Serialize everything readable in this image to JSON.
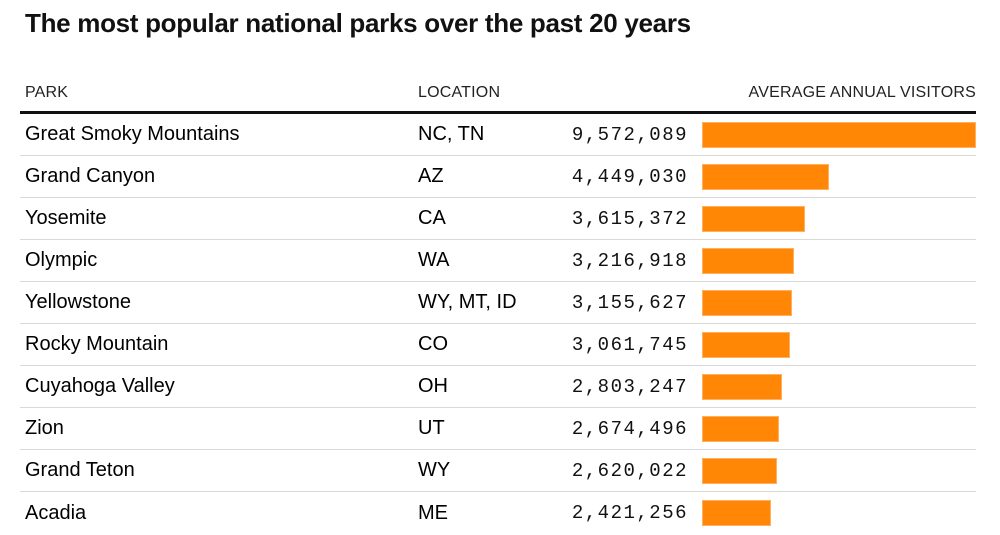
{
  "title": "The most popular national parks over the past 20 years",
  "table": {
    "columns": [
      "PARK",
      "LOCATION",
      "AVERAGE ANNUAL VISITORS"
    ],
    "rows": [
      {
        "park": "Great Smoky Mountains",
        "location": "NC, TN",
        "visitors": "9,572,089",
        "value": 9572089
      },
      {
        "park": "Grand Canyon",
        "location": "AZ",
        "visitors": "4,449,030",
        "value": 4449030
      },
      {
        "park": "Yosemite",
        "location": "CA",
        "visitors": "3,615,372",
        "value": 3615372
      },
      {
        "park": "Olympic",
        "location": "WA",
        "visitors": "3,216,918",
        "value": 3216918
      },
      {
        "park": "Yellowstone",
        "location": "WY, MT, ID",
        "visitors": "3,155,627",
        "value": 3155627
      },
      {
        "park": "Rocky Mountain",
        "location": "CO",
        "visitors": "3,061,745",
        "value": 3061745
      },
      {
        "park": "Cuyahoga Valley",
        "location": "OH",
        "visitors": "2,803,247",
        "value": 2803247
      },
      {
        "park": "Zion",
        "location": "UT",
        "visitors": "2,674,496",
        "value": 2674496
      },
      {
        "park": "Grand Teton",
        "location": "WY",
        "visitors": "2,620,022",
        "value": 2620022
      },
      {
        "park": "Acadia",
        "location": "ME",
        "visitors": "2,421,256",
        "value": 2421256
      }
    ]
  },
  "chart_data": {
    "type": "bar",
    "orientation": "horizontal",
    "title": "The most popular national parks over the past 20 years",
    "categories": [
      "Great Smoky Mountains",
      "Grand Canyon",
      "Yosemite",
      "Olympic",
      "Yellowstone",
      "Rocky Mountain",
      "Cuyahoga Valley",
      "Zion",
      "Grand Teton",
      "Acadia"
    ],
    "category_locations": [
      "NC, TN",
      "AZ",
      "CA",
      "WA",
      "WY, MT, ID",
      "CO",
      "OH",
      "UT",
      "WY",
      "ME"
    ],
    "values": [
      9572089,
      4449030,
      3615372,
      3216918,
      3155627,
      3061745,
      2803247,
      2674496,
      2620022,
      2421256
    ],
    "value_labels": [
      "9,572,089",
      "4,449,030",
      "3,615,372",
      "3,216,918",
      "3,155,627",
      "3,061,745",
      "2,803,247",
      "2,674,496",
      "2,620,022",
      "2,421,256"
    ],
    "xlabel": "AVERAGE ANNUAL VISITORS",
    "ylabel": "PARK",
    "xlim": [
      0,
      9572089
    ],
    "grid": false,
    "legend": false,
    "bar_color": "#ff8705",
    "bar_border_color": "#ffaf62"
  },
  "colors": {
    "bar": "#ff8705",
    "bar_border": "#ffaf62",
    "header_rule": "#111111",
    "row_divider": "#d9d9d9",
    "text": "#000000"
  }
}
